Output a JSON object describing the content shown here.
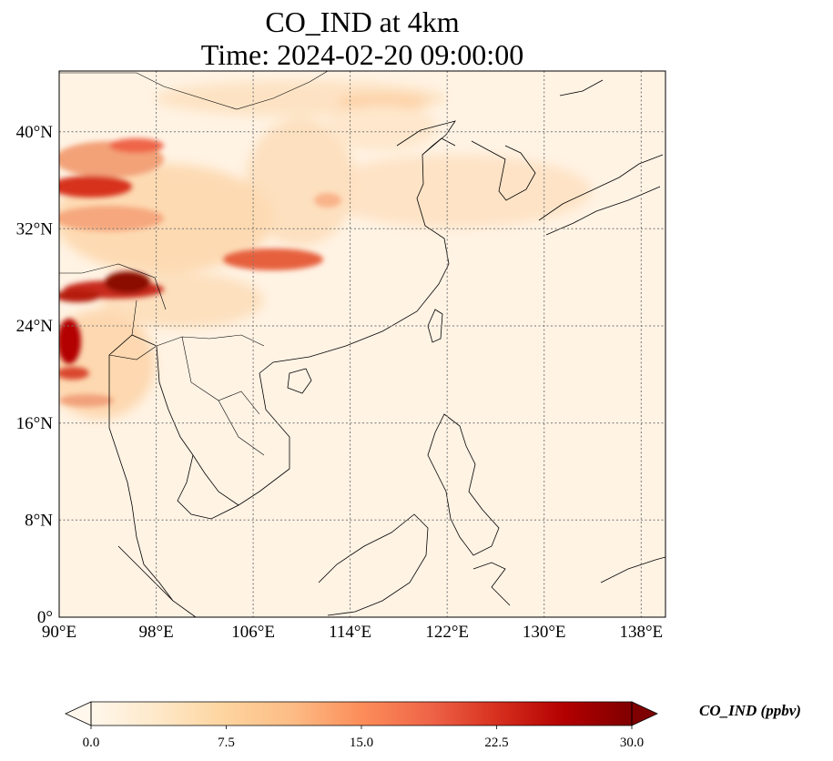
{
  "title": {
    "line1": "CO_IND at 4km",
    "line2": "Time: 2024-02-20 09:00:00"
  },
  "map": {
    "lon_range": [
      90,
      140
    ],
    "lat_range": [
      0,
      45
    ],
    "lon_ticks": [
      "90°E",
      "98°E",
      "106°E",
      "114°E",
      "122°E",
      "130°E",
      "138°E"
    ],
    "lat_ticks": [
      "0°",
      "8°N",
      "16°N",
      "24°N",
      "32°N",
      "40°N"
    ],
    "gridlines": "dotted",
    "coastlines": true
  },
  "colorbar": {
    "label": "CO_IND (ppbv)",
    "colormap": "OrRd",
    "ticks": [
      "0.0",
      "7.5",
      "15.0",
      "22.5",
      "30.0"
    ],
    "range": [
      0,
      30
    ],
    "extend": "both",
    "colors": [
      "#fff7ec",
      "#fee8c8",
      "#fdd49e",
      "#fdbb84",
      "#fc8d59",
      "#ef6548",
      "#d7301f",
      "#b30000",
      "#7f0000"
    ]
  }
}
